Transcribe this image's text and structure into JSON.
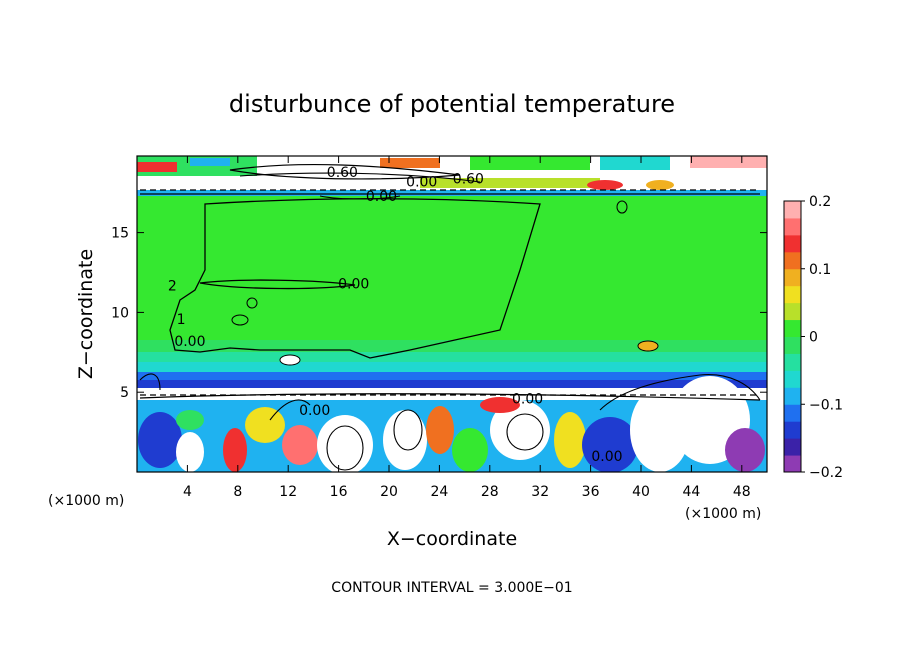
{
  "chart_data": {
    "type": "heatmap",
    "title": "disturbunce of potential temperature",
    "xlabel": "X−coordinate",
    "ylabel": "Z−coordinate",
    "x_unit": "(×1000 m)",
    "y_unit": "(×1000 m)",
    "x_range": [
      0,
      50
    ],
    "y_range": [
      0,
      19.8
    ],
    "x_ticks": [
      "4",
      "8",
      "12",
      "16",
      "20",
      "24",
      "28",
      "32",
      "36",
      "40",
      "44",
      "48"
    ],
    "x_tick_values": [
      4,
      8,
      12,
      16,
      20,
      24,
      28,
      32,
      36,
      40,
      44,
      48
    ],
    "y_ticks": [
      "5",
      "10",
      "15"
    ],
    "y_tick_values": [
      5,
      10,
      15
    ],
    "colorbar": {
      "min": -0.2,
      "max": 0.2,
      "tick_labels": [
        "0.2",
        "0.1",
        "0",
        "−0.1",
        "−0.2"
      ],
      "tick_values": [
        0.2,
        0.1,
        0,
        -0.1,
        -0.2
      ],
      "colors": [
        "#8e3bb3",
        "#3b22a8",
        "#1f3cd0",
        "#1f70f0",
        "#1fb2f0",
        "#20d8d0",
        "#25e0a0",
        "#2fe060",
        "#35e830",
        "#b8e02a",
        "#f0e020",
        "#f0b020",
        "#f07020",
        "#f03030",
        "#ff7070",
        "#ffb0b0"
      ]
    },
    "contour_labels": [
      {
        "text": "0.60",
        "x": 16.3,
        "y": 18.8
      },
      {
        "text": "0.00",
        "x": 22.6,
        "y": 18.2
      },
      {
        "text": "0.60",
        "x": 26.3,
        "y": 18.4
      },
      {
        "text": "0.00",
        "x": 19.4,
        "y": 17.3
      },
      {
        "text": "0.00",
        "x": 17.2,
        "y": 11.8
      },
      {
        "text": "0.00",
        "x": 4.2,
        "y": 8.2
      },
      {
        "text": "0.00",
        "x": 14.1,
        "y": 3.9
      },
      {
        "text": "0.00",
        "x": 31.0,
        "y": 4.6
      },
      {
        "text": "0.00",
        "x": 37.3,
        "y": 1.0
      },
      {
        "text": "1",
        "x": 3.5,
        "y": 9.6
      },
      {
        "text": "2",
        "x": 2.8,
        "y": 11.7
      }
    ],
    "contour_interval": "CONTOUR INTERVAL = 3.000E−01"
  }
}
